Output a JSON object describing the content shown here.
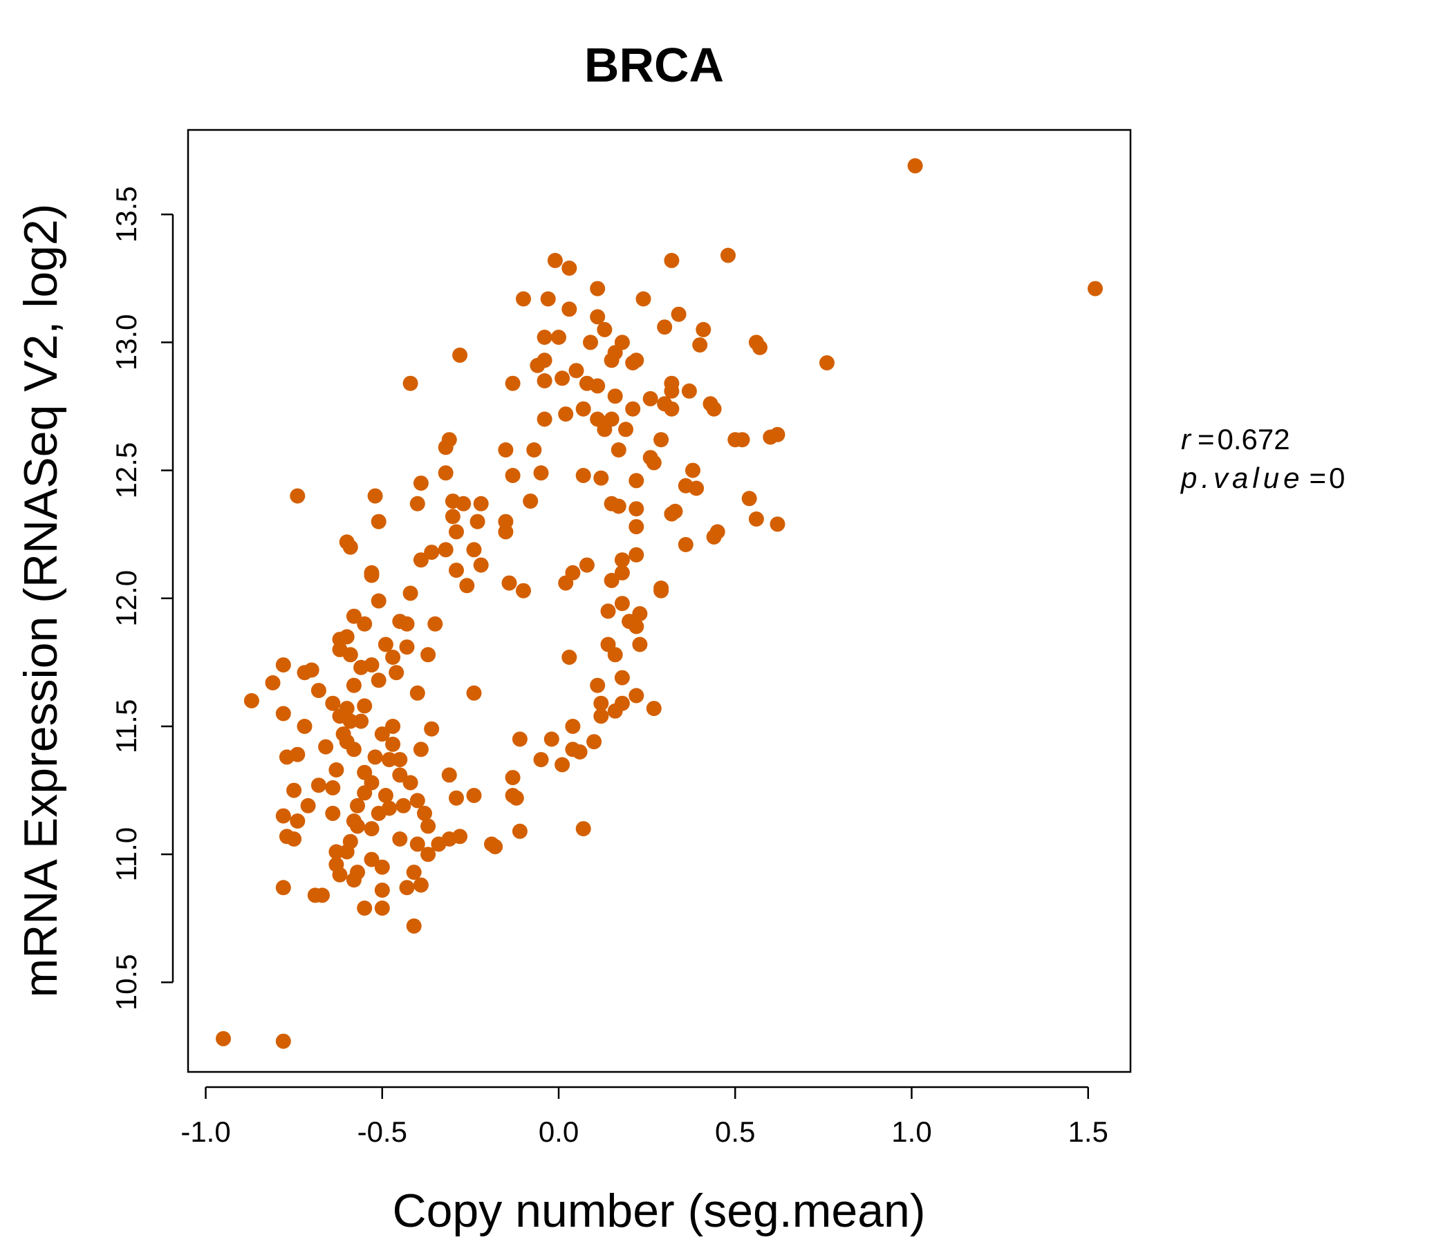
{
  "colors": {
    "accent": "#d35f00",
    "axis": "#000000"
  },
  "chart_data": {
    "type": "scatter",
    "title": "BRCA",
    "xlabel": "Copy number (seg.mean)",
    "ylabel": "mRNA Expression (RNASeq V2, log2)",
    "xlim": [
      -1.05,
      1.62
    ],
    "ylim": [
      10.15,
      13.83
    ],
    "xticks": [
      "-1.0",
      "-0.5",
      "0.0",
      "0.5",
      "1.0",
      "1.5"
    ],
    "yticks": [
      "10.5",
      "11.0",
      "11.5",
      "12.0",
      "12.5",
      "13.0",
      "13.5"
    ],
    "annotation": {
      "r_label": "r",
      "r_value": "0.672",
      "p_label": "p.value",
      "p_value": "0"
    },
    "points": [
      [
        -0.95,
        10.28
      ],
      [
        -0.78,
        10.27
      ],
      [
        1.01,
        13.69
      ],
      [
        1.52,
        13.21
      ],
      [
        0.48,
        13.34
      ],
      [
        0.32,
        13.32
      ],
      [
        -0.01,
        13.32
      ],
      [
        0.03,
        13.29
      ],
      [
        0.11,
        13.21
      ],
      [
        0.24,
        13.17
      ],
      [
        -0.1,
        13.17
      ],
      [
        -0.03,
        13.17
      ],
      [
        0.03,
        13.13
      ],
      [
        0.34,
        13.11
      ],
      [
        0.11,
        13.1
      ],
      [
        0.3,
        13.06
      ],
      [
        0.13,
        13.05
      ],
      [
        0.41,
        13.05
      ],
      [
        -0.04,
        13.02
      ],
      [
        0.0,
        13.02
      ],
      [
        0.18,
        13.0
      ],
      [
        0.09,
        13.0
      ],
      [
        0.56,
        13.0
      ],
      [
        0.57,
        12.98
      ],
      [
        0.4,
        12.99
      ],
      [
        0.16,
        12.96
      ],
      [
        -0.28,
        12.95
      ],
      [
        0.15,
        12.93
      ],
      [
        0.22,
        12.93
      ],
      [
        0.21,
        12.92
      ],
      [
        0.76,
        12.92
      ],
      [
        -0.06,
        12.91
      ],
      [
        -0.04,
        12.93
      ],
      [
        0.05,
        12.89
      ],
      [
        -0.42,
        12.84
      ],
      [
        -0.13,
        12.84
      ],
      [
        -0.04,
        12.85
      ],
      [
        0.01,
        12.86
      ],
      [
        0.08,
        12.84
      ],
      [
        0.11,
        12.83
      ],
      [
        0.32,
        12.84
      ],
      [
        0.32,
        12.81
      ],
      [
        0.37,
        12.81
      ],
      [
        0.16,
        12.79
      ],
      [
        0.26,
        12.78
      ],
      [
        0.3,
        12.76
      ],
      [
        0.43,
        12.76
      ],
      [
        0.44,
        12.74
      ],
      [
        0.32,
        12.74
      ],
      [
        0.21,
        12.74
      ],
      [
        0.07,
        12.74
      ],
      [
        0.02,
        12.72
      ],
      [
        0.11,
        12.7
      ],
      [
        0.15,
        12.7
      ],
      [
        -0.04,
        12.7
      ],
      [
        0.19,
        12.66
      ],
      [
        0.13,
        12.66
      ],
      [
        0.6,
        12.63
      ],
      [
        0.52,
        12.62
      ],
      [
        0.5,
        12.62
      ],
      [
        0.62,
        12.64
      ],
      [
        0.29,
        12.62
      ],
      [
        -0.31,
        12.62
      ],
      [
        -0.32,
        12.59
      ],
      [
        -0.15,
        12.58
      ],
      [
        -0.07,
        12.58
      ],
      [
        0.17,
        12.58
      ],
      [
        0.26,
        12.55
      ],
      [
        0.27,
        12.53
      ],
      [
        0.38,
        12.5
      ],
      [
        -0.32,
        12.49
      ],
      [
        -0.13,
        12.48
      ],
      [
        -0.05,
        12.49
      ],
      [
        0.07,
        12.48
      ],
      [
        0.12,
        12.47
      ],
      [
        0.22,
        12.46
      ],
      [
        -0.39,
        12.45
      ],
      [
        0.36,
        12.44
      ],
      [
        0.39,
        12.43
      ],
      [
        -0.74,
        12.4
      ],
      [
        -0.52,
        12.4
      ],
      [
        -0.3,
        12.38
      ],
      [
        -0.27,
        12.37
      ],
      [
        -0.4,
        12.37
      ],
      [
        -0.22,
        12.37
      ],
      [
        -0.08,
        12.38
      ],
      [
        0.15,
        12.37
      ],
      [
        0.17,
        12.36
      ],
      [
        0.22,
        12.35
      ],
      [
        0.54,
        12.39
      ],
      [
        0.32,
        12.33
      ],
      [
        0.33,
        12.34
      ],
      [
        -0.3,
        12.32
      ],
      [
        -0.23,
        12.3
      ],
      [
        -0.15,
        12.3
      ],
      [
        -0.51,
        12.3
      ],
      [
        0.56,
        12.31
      ],
      [
        0.62,
        12.29
      ],
      [
        0.22,
        12.28
      ],
      [
        0.45,
        12.26
      ],
      [
        0.44,
        12.24
      ],
      [
        -0.15,
        12.26
      ],
      [
        -0.29,
        12.26
      ],
      [
        -0.6,
        12.22
      ],
      [
        -0.59,
        12.2
      ],
      [
        0.36,
        12.21
      ],
      [
        -0.32,
        12.19
      ],
      [
        -0.24,
        12.19
      ],
      [
        -0.36,
        12.18
      ],
      [
        -0.39,
        12.15
      ],
      [
        0.22,
        12.17
      ],
      [
        0.18,
        12.15
      ],
      [
        0.08,
        12.13
      ],
      [
        0.04,
        12.1
      ],
      [
        -0.22,
        12.13
      ],
      [
        -0.29,
        12.11
      ],
      [
        -0.53,
        12.09
      ],
      [
        -0.53,
        12.1
      ],
      [
        0.18,
        12.1
      ],
      [
        0.15,
        12.07
      ],
      [
        -0.14,
        12.06
      ],
      [
        0.02,
        12.06
      ],
      [
        -0.26,
        12.05
      ],
      [
        -0.42,
        12.02
      ],
      [
        -0.1,
        12.03
      ],
      [
        0.29,
        12.04
      ],
      [
        0.29,
        12.03
      ],
      [
        -0.51,
        11.99
      ],
      [
        0.18,
        11.98
      ],
      [
        0.23,
        11.94
      ],
      [
        0.14,
        11.95
      ],
      [
        -0.58,
        11.93
      ],
      [
        -0.55,
        11.9
      ],
      [
        -0.45,
        11.91
      ],
      [
        -0.43,
        11.9
      ],
      [
        -0.35,
        11.9
      ],
      [
        0.2,
        11.91
      ],
      [
        0.22,
        11.89
      ],
      [
        -0.6,
        11.85
      ],
      [
        -0.62,
        11.84
      ],
      [
        -0.49,
        11.82
      ],
      [
        -0.43,
        11.81
      ],
      [
        0.14,
        11.82
      ],
      [
        0.23,
        11.82
      ],
      [
        -0.62,
        11.8
      ],
      [
        -0.59,
        11.78
      ],
      [
        -0.37,
        11.78
      ],
      [
        -0.47,
        11.77
      ],
      [
        0.03,
        11.77
      ],
      [
        0.16,
        11.78
      ],
      [
        -0.78,
        11.74
      ],
      [
        -0.7,
        11.72
      ],
      [
        -0.72,
        11.71
      ],
      [
        -0.56,
        11.73
      ],
      [
        -0.53,
        11.74
      ],
      [
        -0.46,
        11.71
      ],
      [
        0.18,
        11.69
      ],
      [
        -0.81,
        11.67
      ],
      [
        -0.58,
        11.66
      ],
      [
        -0.51,
        11.68
      ],
      [
        0.11,
        11.66
      ],
      [
        -0.68,
        11.64
      ],
      [
        -0.4,
        11.63
      ],
      [
        -0.24,
        11.63
      ],
      [
        0.22,
        11.62
      ],
      [
        -0.87,
        11.6
      ],
      [
        -0.64,
        11.59
      ],
      [
        -0.6,
        11.57
      ],
      [
        -0.55,
        11.58
      ],
      [
        0.12,
        11.59
      ],
      [
        0.18,
        11.59
      ],
      [
        0.27,
        11.57
      ],
      [
        -0.78,
        11.55
      ],
      [
        -0.62,
        11.54
      ],
      [
        -0.59,
        11.52
      ],
      [
        -0.56,
        11.52
      ],
      [
        0.12,
        11.54
      ],
      [
        0.16,
        11.56
      ],
      [
        -0.72,
        11.5
      ],
      [
        -0.47,
        11.5
      ],
      [
        -0.36,
        11.49
      ],
      [
        0.04,
        11.5
      ],
      [
        -0.61,
        11.47
      ],
      [
        -0.5,
        11.47
      ],
      [
        -0.6,
        11.44
      ],
      [
        -0.47,
        11.43
      ],
      [
        -0.11,
        11.45
      ],
      [
        -0.02,
        11.45
      ],
      [
        0.1,
        11.44
      ],
      [
        -0.66,
        11.42
      ],
      [
        -0.58,
        11.41
      ],
      [
        -0.39,
        11.41
      ],
      [
        0.04,
        11.41
      ],
      [
        0.06,
        11.4
      ],
      [
        -0.77,
        11.38
      ],
      [
        -0.74,
        11.39
      ],
      [
        -0.52,
        11.38
      ],
      [
        -0.48,
        11.37
      ],
      [
        -0.45,
        11.37
      ],
      [
        -0.05,
        11.37
      ],
      [
        0.01,
        11.35
      ],
      [
        -0.63,
        11.33
      ],
      [
        -0.55,
        11.32
      ],
      [
        -0.45,
        11.31
      ],
      [
        -0.31,
        11.31
      ],
      [
        -0.13,
        11.3
      ],
      [
        -0.53,
        11.28
      ],
      [
        -0.42,
        11.28
      ],
      [
        -0.68,
        11.27
      ],
      [
        -0.64,
        11.26
      ],
      [
        -0.75,
        11.25
      ],
      [
        -0.55,
        11.24
      ],
      [
        -0.49,
        11.23
      ],
      [
        -0.24,
        11.23
      ],
      [
        -0.29,
        11.22
      ],
      [
        -0.4,
        11.21
      ],
      [
        -0.13,
        11.23
      ],
      [
        -0.12,
        11.22
      ],
      [
        -0.71,
        11.19
      ],
      [
        -0.57,
        11.19
      ],
      [
        -0.48,
        11.18
      ],
      [
        -0.44,
        11.19
      ],
      [
        -0.64,
        11.16
      ],
      [
        -0.51,
        11.16
      ],
      [
        -0.38,
        11.16
      ],
      [
        -0.78,
        11.15
      ],
      [
        -0.58,
        11.13
      ],
      [
        -0.74,
        11.13
      ],
      [
        -0.57,
        11.11
      ],
      [
        -0.53,
        11.1
      ],
      [
        -0.37,
        11.11
      ],
      [
        0.07,
        11.1
      ],
      [
        -0.77,
        11.07
      ],
      [
        -0.75,
        11.06
      ],
      [
        -0.28,
        11.07
      ],
      [
        -0.31,
        11.06
      ],
      [
        -0.45,
        11.06
      ],
      [
        -0.11,
        11.09
      ],
      [
        -0.59,
        11.05
      ],
      [
        -0.4,
        11.04
      ],
      [
        -0.34,
        11.04
      ],
      [
        -0.19,
        11.04
      ],
      [
        -0.18,
        11.03
      ],
      [
        -0.63,
        11.01
      ],
      [
        -0.6,
        11.01
      ],
      [
        -0.37,
        11.0
      ],
      [
        -0.53,
        10.98
      ],
      [
        -0.63,
        10.96
      ],
      [
        -0.5,
        10.95
      ],
      [
        -0.41,
        10.93
      ],
      [
        -0.57,
        10.93
      ],
      [
        -0.62,
        10.92
      ],
      [
        -0.58,
        10.9
      ],
      [
        -0.39,
        10.88
      ],
      [
        -0.43,
        10.87
      ],
      [
        -0.78,
        10.87
      ],
      [
        -0.5,
        10.86
      ],
      [
        -0.67,
        10.84
      ],
      [
        -0.69,
        10.84
      ],
      [
        -0.5,
        10.79
      ],
      [
        -0.55,
        10.79
      ],
      [
        -0.41,
        10.72
      ]
    ]
  }
}
